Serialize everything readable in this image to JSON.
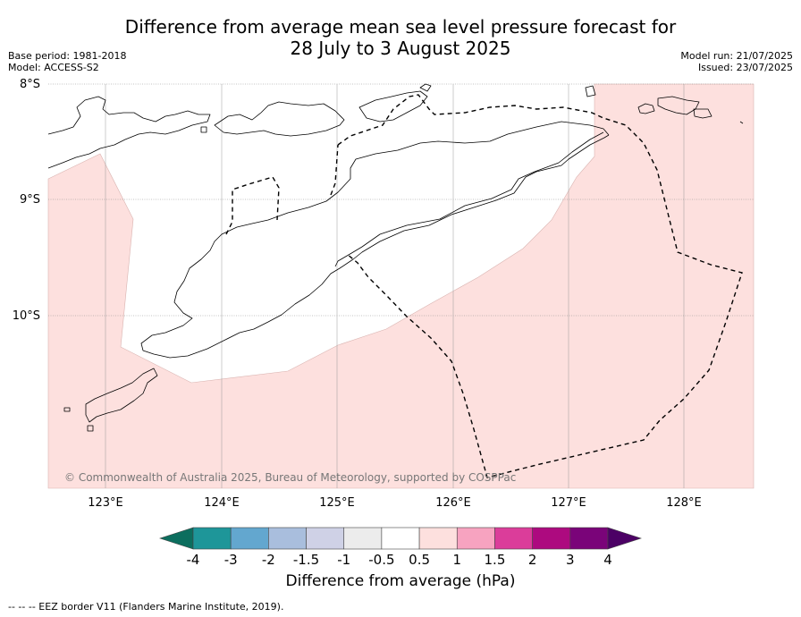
{
  "title_line1": "Difference from average mean sea level pressure forecast for",
  "title_line2": "28 July to 3 August 2025",
  "base_period": "Base period: 1981-2018",
  "model": "Model: ACCESS-S2",
  "model_run": "Model run: 21/07/2025",
  "issued": "Issued: 23/07/2025",
  "copyright": "© Commonwealth of Australia 2025, Bureau of Meteorology, supported by COSPPac",
  "lat_labels": [
    "8°S",
    "9°S",
    "10°S"
  ],
  "lon_labels": [
    "123°E",
    "124°E",
    "125°E",
    "126°E",
    "127°E",
    "128°E"
  ],
  "colorbar": {
    "ticks": [
      "-4",
      "-3",
      "-2",
      "-1.5",
      "-1",
      "-0.5",
      "0.5",
      "1",
      "1.5",
      "2",
      "3",
      "4"
    ],
    "colors": [
      "#0c6e5e",
      "#1e9699",
      "#63a7cf",
      "#a9bedd",
      "#cfd1e6",
      "#ececec",
      "#ffffff",
      "#fde0de",
      "#f7a3c0",
      "#db3d9a",
      "#ad0a7f",
      "#7a0479",
      "#4c0165"
    ],
    "title": "Difference from average (hPa)"
  },
  "footer": "--  --  -- EEZ border V11 (Flanders Marine Institute, 2019)."
}
